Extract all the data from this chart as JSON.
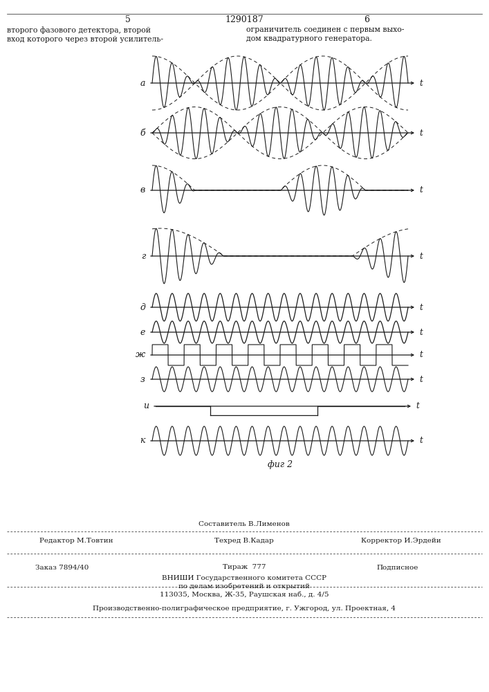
{
  "page_number_left": "5",
  "page_number_center": "1290187",
  "page_number_right": "6",
  "text_left": "второго фазового детектора, второй\nвход которого через второй усилитель-",
  "text_right": "ограничитель соединен с первым выхо-\nдом квадратурного генератора.",
  "fig_label": "фиг 2",
  "bottom_text1": "Составитель В.Лименов",
  "bottom_text2_left": "Редактор М.Товтин",
  "bottom_text2_mid": "Техред В.Кадар",
  "bottom_text2_right": "Корректор И.Эрдейи",
  "bottom_text3_left": "Заказ 7894/40",
  "bottom_text3_mid": "Тираж  777",
  "bottom_text3_right": "Подписное",
  "bottom_text4": "ВНИШИ Государственного комитета СССР",
  "bottom_text5": "по делам изобретений и открытий",
  "bottom_text6": "113035, Москва, Ж-35, Раушская наб., д. 4/5",
  "bottom_text7": "Производственно-полиграфическое предприятие, г. Ужгород, ул. Проектная, 4",
  "bg_color": "#ffffff",
  "line_color": "#1a1a1a"
}
